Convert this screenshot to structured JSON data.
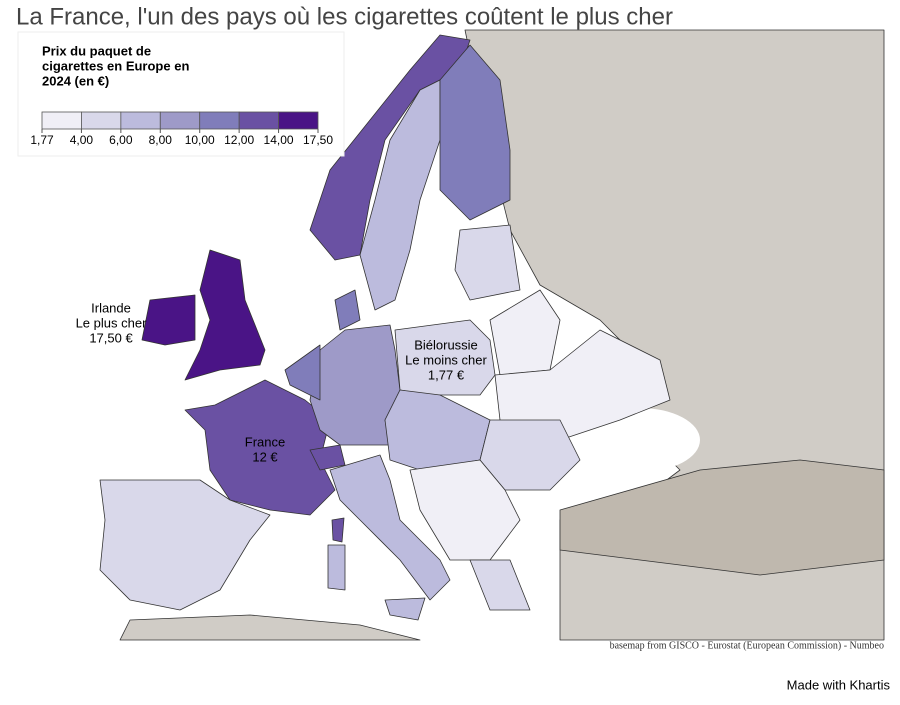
{
  "title": "La France, l'un des pays où les cigarettes coûtent le plus cher",
  "legend": {
    "title": [
      "Prix du paquet de",
      "cigarettes en Europe en",
      "2024 (en €)"
    ],
    "breaks": [
      {
        "value": 1.77,
        "label": "1,77"
      },
      {
        "value": 4,
        "label": "4,00"
      },
      {
        "value": 6,
        "label": "6,00"
      },
      {
        "value": 8,
        "label": "8,00"
      },
      {
        "value": 10,
        "label": "10,00"
      },
      {
        "value": 12,
        "label": "12,00"
      },
      {
        "value": 14,
        "label": "14,00"
      },
      {
        "value": 17.5,
        "label": "17,50"
      }
    ],
    "colors": [
      "#f0eff6",
      "#d9d8ea",
      "#bcbbdd",
      "#9e9ac8",
      "#807dba",
      "#6a51a3",
      "#4a1486"
    ]
  },
  "annotations": [
    {
      "lines": [
        "Irlande",
        "Le plus cher",
        "17,50 €"
      ]
    },
    {
      "lines": [
        "Biélorussie",
        "Le moins cher",
        "1,77 €"
      ]
    },
    {
      "lines": [
        "France",
        "12 €"
      ]
    }
  ],
  "source": "basemap from GISCO - Eurostat (European Commission) - Numbeo",
  "credit": "Made with Khartis"
}
